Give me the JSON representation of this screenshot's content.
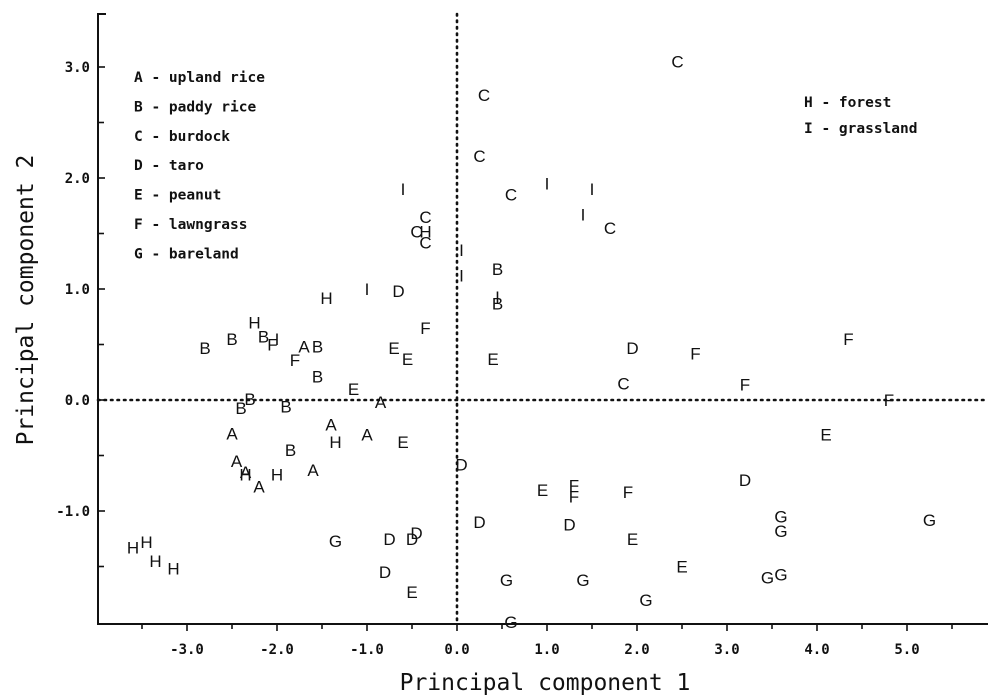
{
  "chart_data": {
    "type": "scatter",
    "xlabel": "Principal component 1",
    "ylabel": "Principal component 2",
    "xlim": [
      -4.0,
      6.0
    ],
    "ylim": [
      -2.0,
      3.5
    ],
    "xticks": [
      "-3.0",
      "-2.0",
      "-1.0",
      "0.0",
      "1.0",
      "2.0",
      "3.0",
      "4.0",
      "5.0"
    ],
    "yticks": [
      "3.0",
      "2.0",
      "1.0",
      "0.0",
      "-1.0"
    ],
    "grid": false,
    "reference_lines": {
      "x": 0,
      "y": 0,
      "style": "dotted"
    },
    "legend": [
      {
        "symbol": "A",
        "text": "A - upland rice"
      },
      {
        "symbol": "B",
        "text": "B - paddy rice"
      },
      {
        "symbol": "C",
        "text": "C - burdock"
      },
      {
        "symbol": "D",
        "text": "D - taro"
      },
      {
        "symbol": "E",
        "text": "E - peanut"
      },
      {
        "symbol": "F",
        "text": "F - lawngrass"
      },
      {
        "symbol": "G",
        "text": "G - bareland"
      },
      {
        "symbol": "H",
        "text": "H - forest"
      },
      {
        "symbol": "I",
        "text": "I - grassland"
      }
    ],
    "series": [
      {
        "symbol": "A",
        "points": [
          [
            -2.5,
            -0.3
          ],
          [
            -2.45,
            -0.55
          ],
          [
            -2.35,
            -0.65
          ],
          [
            -2.2,
            -0.78
          ],
          [
            -1.6,
            -0.63
          ],
          [
            -1.4,
            -0.22
          ],
          [
            -1.0,
            -0.31
          ],
          [
            -0.85,
            -0.02
          ],
          [
            -1.7,
            0.48
          ]
        ]
      },
      {
        "symbol": "B",
        "points": [
          [
            -2.8,
            0.47
          ],
          [
            -2.5,
            0.55
          ],
          [
            -2.15,
            0.57
          ],
          [
            -2.3,
            0.01
          ],
          [
            -2.4,
            -0.07
          ],
          [
            -1.9,
            -0.06
          ],
          [
            -1.85,
            -0.45
          ],
          [
            -1.55,
            0.48
          ],
          [
            -1.55,
            0.21
          ],
          [
            0.45,
            1.18
          ],
          [
            0.45,
            0.87
          ]
        ]
      },
      {
        "symbol": "C",
        "points": [
          [
            2.45,
            3.05
          ],
          [
            0.3,
            2.75
          ],
          [
            0.25,
            2.2
          ],
          [
            0.6,
            1.85
          ],
          [
            1.7,
            1.55
          ],
          [
            -0.35,
            1.65
          ],
          [
            -0.45,
            1.52
          ],
          [
            -0.35,
            1.42
          ],
          [
            1.85,
            0.15
          ]
        ]
      },
      {
        "symbol": "D",
        "points": [
          [
            -0.65,
            0.98
          ],
          [
            1.95,
            0.47
          ],
          [
            0.05,
            -0.58
          ],
          [
            3.2,
            -0.72
          ],
          [
            0.25,
            -1.1
          ],
          [
            1.25,
            -1.12
          ],
          [
            -0.75,
            -1.25
          ],
          [
            -0.5,
            -1.25
          ],
          [
            -0.45,
            -1.2
          ],
          [
            -0.8,
            -1.55
          ]
        ]
      },
      {
        "symbol": "E",
        "points": [
          [
            -0.7,
            0.47
          ],
          [
            -0.55,
            0.37
          ],
          [
            0.4,
            0.37
          ],
          [
            -1.15,
            0.1
          ],
          [
            -0.6,
            -0.38
          ],
          [
            4.1,
            -0.31
          ],
          [
            0.95,
            -0.81
          ],
          [
            1.95,
            -1.25
          ],
          [
            2.5,
            -1.5
          ],
          [
            -0.5,
            -1.73
          ]
        ]
      },
      {
        "symbol": "F",
        "points": [
          [
            -0.35,
            0.65
          ],
          [
            -2.05,
            0.5
          ],
          [
            -1.8,
            0.36
          ],
          [
            2.65,
            0.42
          ],
          [
            4.35,
            0.55
          ],
          [
            3.2,
            0.14
          ],
          [
            4.8,
            0.0
          ],
          [
            1.3,
            -0.77
          ],
          [
            1.3,
            -0.87
          ],
          [
            1.9,
            -0.83
          ]
        ]
      },
      {
        "symbol": "G",
        "points": [
          [
            -1.35,
            -1.27
          ],
          [
            0.55,
            -1.62
          ],
          [
            1.4,
            -1.62
          ],
          [
            2.1,
            -1.8
          ],
          [
            0.6,
            -2.0
          ],
          [
            3.45,
            -1.6
          ],
          [
            3.6,
            -1.57
          ],
          [
            3.6,
            -1.05
          ],
          [
            3.6,
            -1.18
          ],
          [
            5.25,
            -1.08
          ]
        ]
      },
      {
        "symbol": "H",
        "points": [
          [
            -2.25,
            0.7
          ],
          [
            -1.45,
            0.92
          ],
          [
            -0.35,
            1.52
          ],
          [
            -1.35,
            -0.38
          ],
          [
            -2.35,
            -0.67
          ],
          [
            -2.0,
            -0.67
          ],
          [
            -3.6,
            -1.33
          ],
          [
            -3.45,
            -1.28
          ],
          [
            -3.35,
            -1.45
          ],
          [
            -3.15,
            -1.52
          ]
        ]
      },
      {
        "symbol": "I",
        "points": [
          [
            -0.6,
            1.9
          ],
          [
            1.0,
            1.95
          ],
          [
            1.5,
            1.9
          ],
          [
            1.4,
            1.67
          ],
          [
            -1.0,
            1.0
          ],
          [
            -2.0,
            0.55
          ],
          [
            0.05,
            1.35
          ],
          [
            0.05,
            1.12
          ],
          [
            0.45,
            0.93
          ]
        ]
      }
    ]
  }
}
